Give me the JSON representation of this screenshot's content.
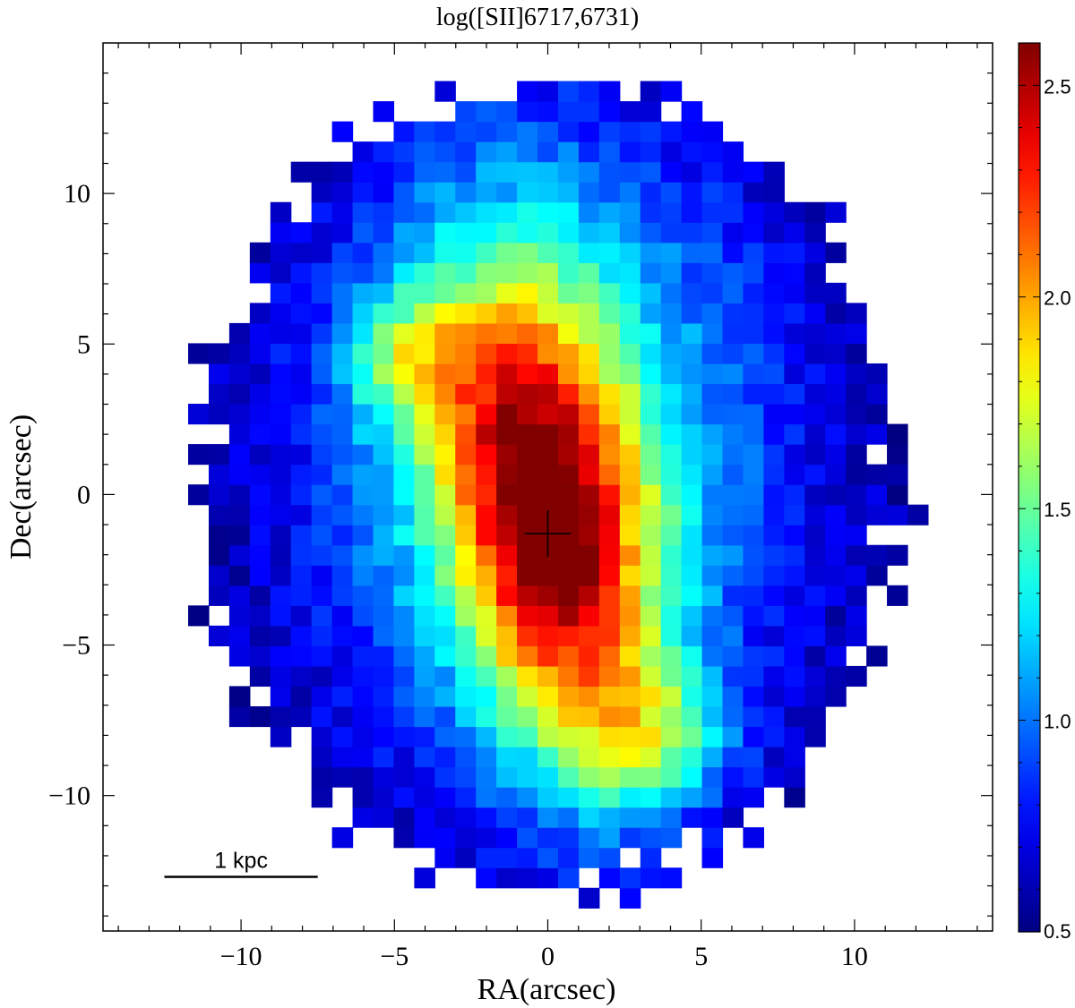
{
  "chart_data": {
    "type": "heatmap",
    "title": "log([SII]6717,6731)",
    "xlabel": "RA(arcsec)",
    "ylabel": "Dec(arcsec)",
    "xlim": [
      -14.5,
      14.5
    ],
    "ylim": [
      -14.5,
      15.0
    ],
    "xticks": [
      -10,
      -5,
      0,
      5,
      10
    ],
    "yticks": [
      -10,
      -5,
      0,
      5,
      10
    ],
    "xtick_labels": [
      "−10",
      "−5",
      "0",
      "5",
      "10"
    ],
    "ytick_labels": [
      "−10",
      "−5",
      "0",
      "5",
      "10"
    ],
    "colormap": "jet",
    "colorbar": {
      "range": [
        0.5,
        2.6
      ],
      "ticks": [
        0.5,
        1.0,
        1.5,
        2.0,
        2.5
      ],
      "tick_labels": [
        "0.5",
        "1.0",
        "1.5",
        "2.0",
        "2.5"
      ]
    },
    "pixel_size_arcsec": 0.67,
    "nucleus_marker": {
      "x": 0.0,
      "y": -1.3
    },
    "scale_bar": {
      "label": "1 kpc",
      "x_start": -12.5,
      "x_end": -7.5,
      "y": -12.7
    },
    "value_model": {
      "description_free": true,
      "peak_value": 2.6,
      "peak_center": [
        0.0,
        -1.0
      ],
      "floor_value": 0.5
    }
  }
}
